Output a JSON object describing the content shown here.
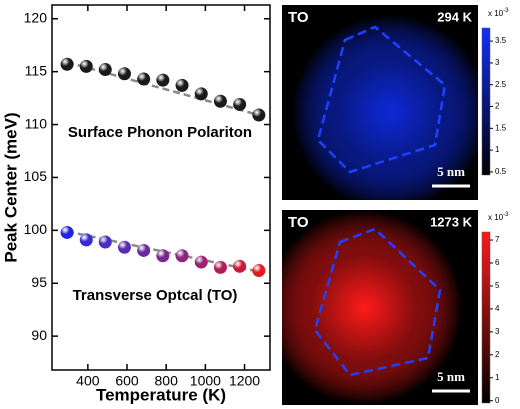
{
  "chart_data": [
    {
      "type": "scatter",
      "x_label": "Temperature (K)",
      "y_label": "Peak Center (meV)",
      "xlim": [
        217,
        1330
      ],
      "xticks": [
        400,
        600,
        800,
        1000,
        1200
      ],
      "ylim": [
        86.8,
        121.3
      ],
      "yticks": [
        90,
        95,
        100,
        105,
        110,
        115,
        120
      ],
      "x": [
        294,
        392,
        489,
        587,
        685,
        783,
        881,
        979,
        1077,
        1175,
        1273
      ],
      "fit_color": "#8a8a8a",
      "series": [
        {
          "color": "#1a1a1a",
          "values": [
            115.7,
            115.5,
            115.2,
            114.8,
            114.3,
            114.2,
            113.7,
            112.9,
            112.2,
            111.9,
            110.9
          ],
          "fit": [
            115.9,
            110.9
          ]
        },
        {
          "colors": [
            "#2222e6",
            "#3a2ad4",
            "#4a2cc2",
            "#5a2cb0",
            "#6a2aa0",
            "#7a2890",
            "#8a2680",
            "#9a2470",
            "#b01e5a",
            "#c81a40",
            "#e41a1c"
          ],
          "values": [
            99.8,
            99.1,
            98.9,
            98.4,
            98.1,
            97.6,
            97.6,
            97.0,
            96.5,
            96.6,
            96.2
          ],
          "fit": [
            99.9,
            96.1
          ]
        }
      ],
      "annotations": [
        "Surface Phonon Polariton",
        "Transverse Optcal (TO)"
      ]
    },
    {
      "type": "heatmap",
      "label": "TO",
      "temperature": "294 K",
      "scale_bar": "5 nm",
      "colormap": [
        "#000000",
        "#1030ff"
      ],
      "clim": [
        0.43,
        3.8
      ],
      "colorbar_ticks": [
        0.5,
        1,
        1.5,
        2,
        2.5,
        3,
        3.5
      ],
      "colorbar_base": "x 10",
      "colorbar_exponent": "-3"
    },
    {
      "type": "heatmap",
      "label": "TO",
      "temperature": "1273 K",
      "scale_bar": "5 nm",
      "colormap": [
        "#000000",
        "#ff1a1a"
      ],
      "clim": [
        -0.1,
        7.35
      ],
      "colorbar_ticks": [
        0,
        1,
        2,
        3,
        4,
        5,
        6,
        7
      ],
      "colorbar_base": "x 10",
      "colorbar_exponent": "-3"
    }
  ]
}
